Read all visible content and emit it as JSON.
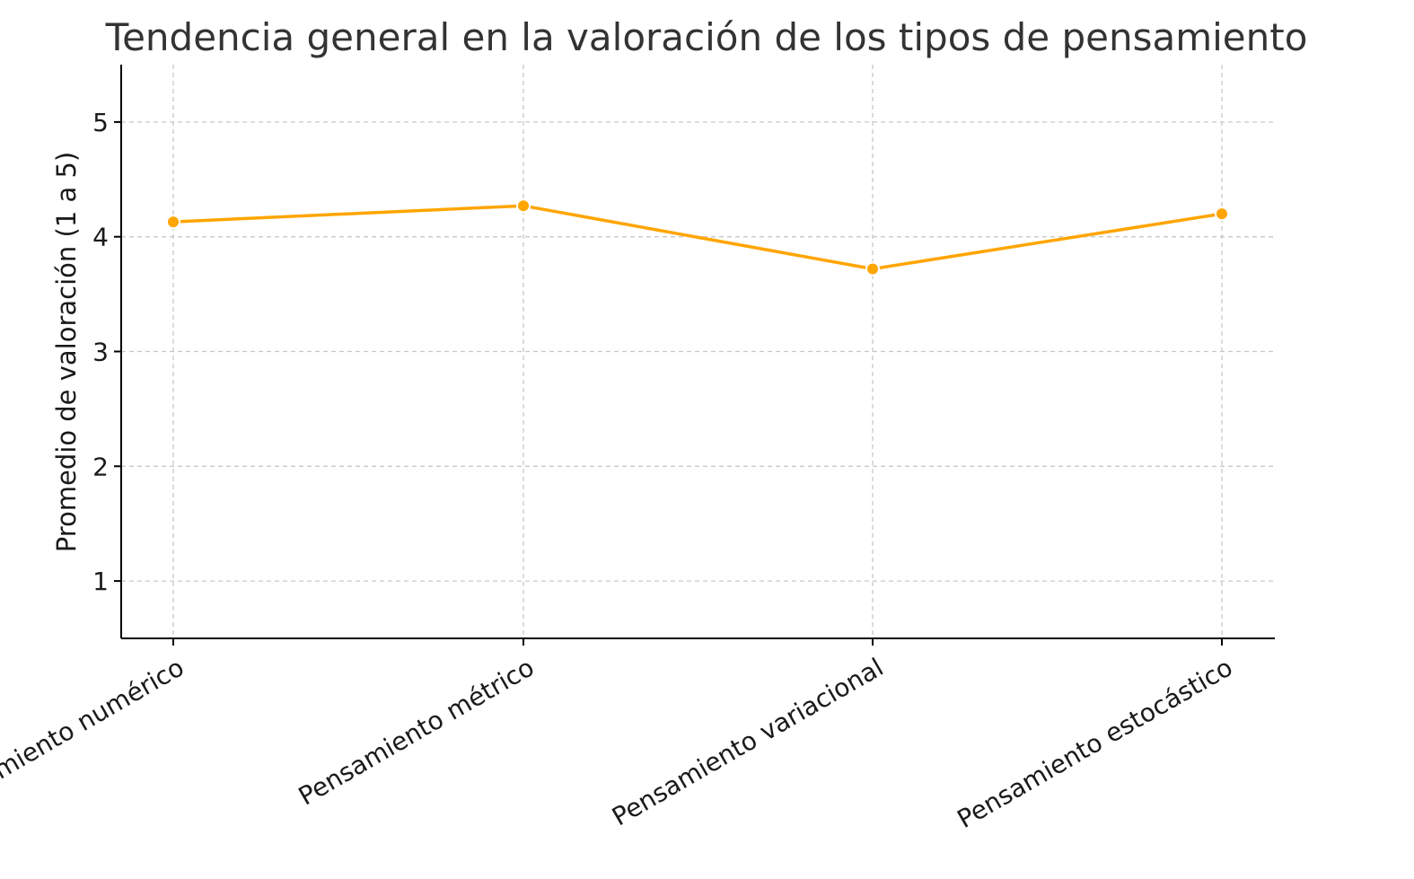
{
  "chart_data": {
    "type": "line",
    "title": "Tendencia general en la valoración de los tipos de pensamiento",
    "xlabel": "",
    "ylabel": "Promedio de valoración (1 a 5)",
    "categories": [
      "Pensamiento numérico",
      "Pensamiento métrico",
      "Pensamiento variacional",
      "Pensamiento estocástico"
    ],
    "series": [
      {
        "values": [
          4.13,
          4.27,
          3.72,
          4.2
        ]
      }
    ],
    "ylim": [
      0.5,
      5.5
    ],
    "yticks": [
      "1",
      "2",
      "3",
      "4",
      "5"
    ],
    "grid": true,
    "marker": "circle",
    "colors": {
      "series": "#FFA500",
      "axis": "#000000",
      "grid": "#c8c8c8",
      "title": "#333333"
    }
  }
}
